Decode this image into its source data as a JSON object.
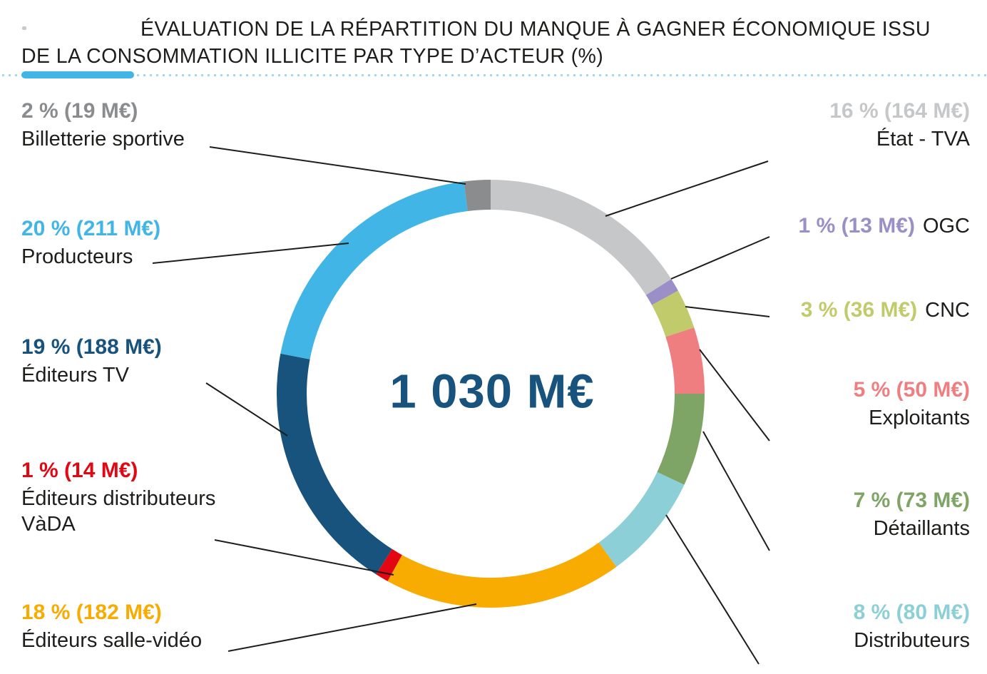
{
  "title": {
    "line1": "ÉVALUATION DE LA RÉPARTITION DU MANQUE À GAGNER ÉCONOMIQUE ISSU",
    "line2": "DE LA CONSOMMATION ILLICITE PAR TYPE D’ACTEUR (%)"
  },
  "accent": {
    "bar_color": "#41b6e6",
    "dotted_rule_color": "#9fd6ef",
    "center_text_color": "#17537d",
    "leader_line_color": "#1d1d1b"
  },
  "chart_data": {
    "type": "pie",
    "subtype": "donut",
    "title": "ÉVALUATION DE LA RÉPARTITION DU MANQUE À GAGNER ÉCONOMIQUE ISSU DE LA CONSOMMATION ILLICITE PAR TYPE D’ACTEUR (%)",
    "center_total": "1 030 M€",
    "unit": "M€",
    "total_pct": 100,
    "direction": "clockwise",
    "start_angle_deg_from_top": 0,
    "segments": [
      {
        "id": "etat-tva",
        "label": "État - TVA",
        "pct": 16,
        "amount_m_eur": 164,
        "value_text": "16 % (164 M€)",
        "color": "#c6c7c9",
        "side": "right",
        "label_inline": false
      },
      {
        "id": "ogc",
        "label": "OGC",
        "pct": 1,
        "amount_m_eur": 13,
        "value_text": "1 % (13 M€)",
        "color": "#9a8fc6",
        "side": "right",
        "label_inline": true
      },
      {
        "id": "cnc",
        "label": "CNC",
        "pct": 3,
        "amount_m_eur": 36,
        "value_text": "3 % (36 M€)",
        "color": "#c2cb6c",
        "side": "right",
        "label_inline": true
      },
      {
        "id": "exploitants",
        "label": "Exploitants",
        "pct": 5,
        "amount_m_eur": 50,
        "value_text": "5 % (50 M€)",
        "color": "#ee7e80",
        "side": "right",
        "label_inline": false
      },
      {
        "id": "detaillants",
        "label": "Détaillants",
        "pct": 7,
        "amount_m_eur": 73,
        "value_text": "7 % (73 M€)",
        "color": "#7fa566",
        "side": "right",
        "label_inline": false
      },
      {
        "id": "distributeurs",
        "label": "Distributeurs",
        "pct": 8,
        "amount_m_eur": 80,
        "value_text": "8 % (80 M€)",
        "color": "#8ccfd6",
        "side": "right",
        "label_inline": false
      },
      {
        "id": "editeurs-salle-video",
        "label": "Éditeurs salle-vidéo",
        "pct": 18,
        "amount_m_eur": 182,
        "value_text": "18 % (182 M€)",
        "color": "#f8ab00",
        "side": "left",
        "label_inline": false
      },
      {
        "id": "editeurs-distributeurs-vada",
        "label": "Éditeurs distributeurs VàDA",
        "pct": 1,
        "amount_m_eur": 14,
        "value_text": "1 % (14 M€)",
        "color": "#e30613",
        "side": "left",
        "label_inline": false
      },
      {
        "id": "editeurs-tv",
        "label": "Éditeurs TV",
        "pct": 19,
        "amount_m_eur": 188,
        "value_text": "19 % (188 M€)",
        "color": "#17537d",
        "side": "left",
        "label_inline": false
      },
      {
        "id": "producteurs",
        "label": "Producteurs",
        "pct": 20,
        "amount_m_eur": 211,
        "value_text": "20 % (211 M€)",
        "color": "#41b6e6",
        "side": "left",
        "label_inline": false
      },
      {
        "id": "billetterie-sportive",
        "label": "Billetterie sportive",
        "pct": 2,
        "amount_m_eur": 19,
        "value_text": "2 % (19 M€)",
        "color": "#8a8c8e",
        "side": "left",
        "label_inline": false
      }
    ]
  }
}
